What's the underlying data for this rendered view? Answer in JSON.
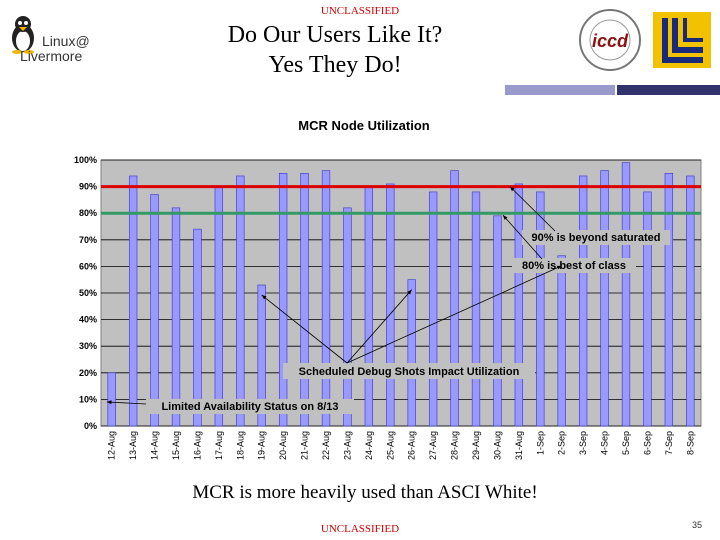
{
  "header": {
    "classification_top": "UNCLASSIFIED",
    "title_line1": "Do Our Users Like It?",
    "title_line2": "Yes They Do!",
    "logo_left_line1": "Linux@",
    "logo_left_line2": "Livermore",
    "logo_right_text": "iccd"
  },
  "footer": {
    "caption": "MCR is more heavily used than ASCI White!",
    "classification_bottom": "UNCLASSIFIED",
    "page_number": "35"
  },
  "colors": {
    "bar": "#9999ff",
    "bar_edge": "#3333cc",
    "plot_bg": "#c0c0c0",
    "line_90": "#dd0000",
    "line_80": "#339966",
    "classification": "#cc0000"
  },
  "chart_data": {
    "type": "bar",
    "title": "MCR Node Utilization",
    "xlabel": "",
    "ylabel": "",
    "ylim": [
      0,
      100
    ],
    "yticks": [
      "0%",
      "10%",
      "20%",
      "30%",
      "40%",
      "50%",
      "60%",
      "70%",
      "80%",
      "90%",
      "100%"
    ],
    "categories": [
      "12-Aug",
      "13-Aug",
      "14-Aug",
      "15-Aug",
      "16-Aug",
      "17-Aug",
      "18-Aug",
      "19-Aug",
      "20-Aug",
      "21-Aug",
      "22-Aug",
      "23-Aug",
      "24-Aug",
      "25-Aug",
      "26-Aug",
      "27-Aug",
      "28-Aug",
      "29-Aug",
      "30-Aug",
      "31-Aug",
      "1-Sep",
      "2-Sep",
      "3-Sep",
      "4-Sep",
      "5-Sep",
      "6-Sep",
      "7-Sep",
      "8-Sep"
    ],
    "values": [
      20,
      94,
      87,
      82,
      74,
      90,
      94,
      53,
      95,
      95,
      96,
      82,
      90,
      91,
      55,
      88,
      96,
      88,
      79,
      91,
      88,
      64,
      94,
      96,
      99,
      88,
      95,
      94
    ],
    "reference_lines": [
      {
        "value": 90,
        "label": "90% is beyond saturated"
      },
      {
        "value": 80,
        "label": "80% is best of class"
      }
    ],
    "annotations": [
      {
        "text": "Scheduled Debug Shots Impact Utilization",
        "points_to": [
          "19-Aug",
          "26-Aug",
          "2-Sep"
        ]
      },
      {
        "text": "Limited Availability Status on 8/13",
        "points_to": [
          "12-Aug"
        ]
      }
    ]
  }
}
